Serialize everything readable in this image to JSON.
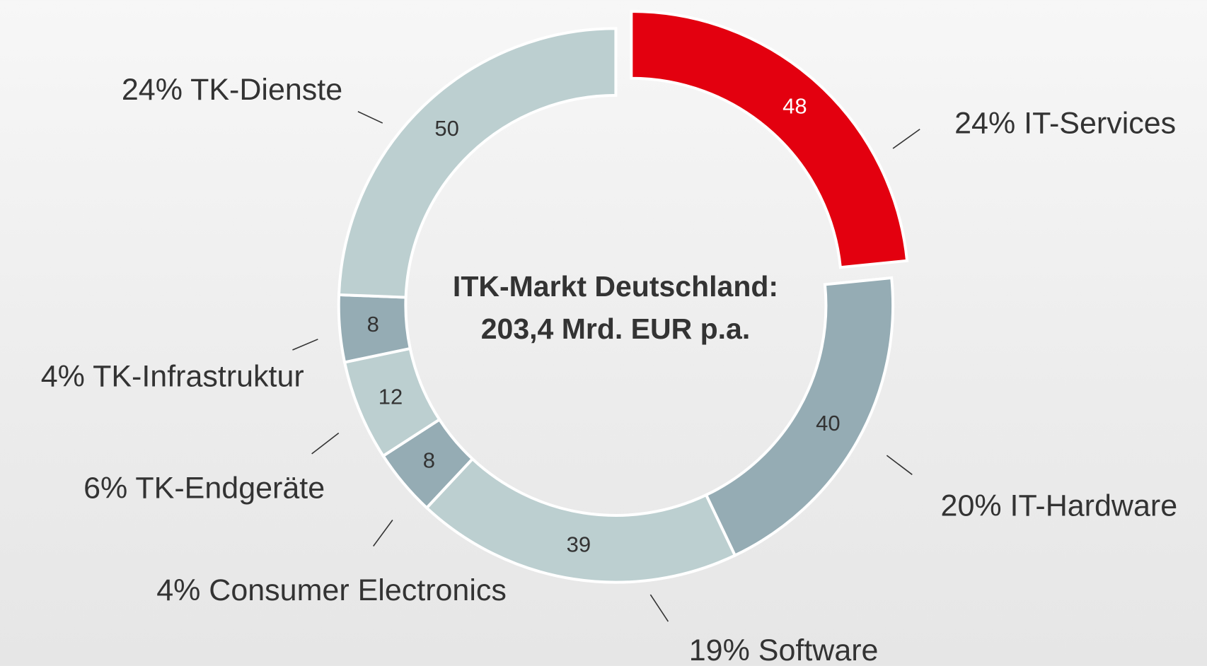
{
  "chart_data": {
    "type": "donut",
    "title_lines": [
      "ITK-Markt Deutschland:",
      "203,4 Mrd. EUR p.a."
    ],
    "categories": [
      "24% IT-Services",
      "20% IT-Hardware",
      "19% Software",
      "4% Consumer Electronics",
      "6% TK-Endgeräte",
      "4% TK-Infrastruktur",
      "24% TK-Dienste"
    ],
    "values": [
      48,
      40,
      39,
      8,
      12,
      8,
      50
    ],
    "colors": [
      "#e3000f",
      "#95acb4",
      "#bccfd0",
      "#95acb4",
      "#bccfd0",
      "#95acb4",
      "#bccfd0"
    ],
    "exploded": [
      0
    ]
  }
}
